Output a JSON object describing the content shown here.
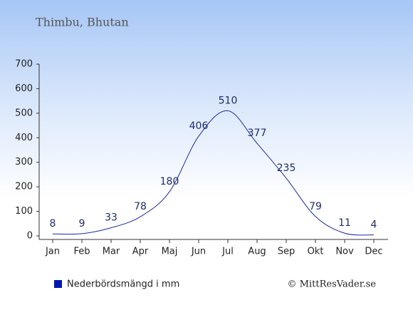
{
  "chart_data": {
    "type": "line",
    "title": "Thimbu, Bhutan",
    "categories": [
      "Jan",
      "Feb",
      "Mar",
      "Apr",
      "Maj",
      "Jun",
      "Jul",
      "Aug",
      "Sep",
      "Okt",
      "Nov",
      "Dec"
    ],
    "series": [
      {
        "name": "Nederbördsmängd i mm",
        "color": "#1c2a9c",
        "values": [
          8,
          9,
          33,
          78,
          180,
          406,
          510,
          377,
          235,
          79,
          11,
          4
        ]
      }
    ],
    "ylim": [
      0,
      700
    ],
    "yticks": [
      0,
      100,
      200,
      300,
      400,
      500,
      600,
      700
    ],
    "source": "© MittResVader.se"
  }
}
